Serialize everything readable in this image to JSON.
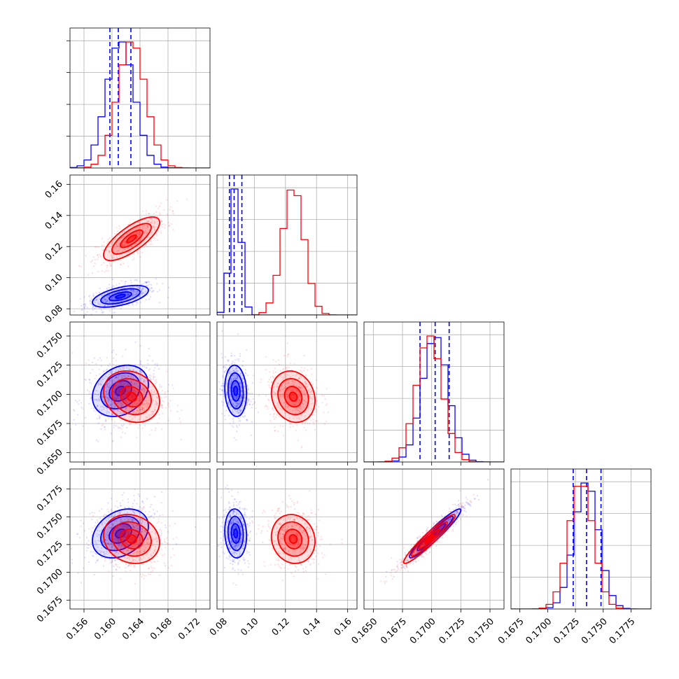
{
  "chart_data": {
    "type": "corner",
    "title": "",
    "grid": true,
    "parameters": [
      "",
      "",
      "",
      ""
    ],
    "ranges": [
      [
        0.154,
        0.174
      ],
      [
        0.076,
        0.166
      ],
      [
        0.1642,
        0.1762
      ],
      [
        0.1667,
        0.1793
      ]
    ],
    "x_ticks": [
      [
        "0.156",
        "0.160",
        "0.164",
        "0.168",
        "0.172"
      ],
      [
        "0.08",
        "0.10",
        "0.12",
        "0.14",
        "0.16"
      ],
      [
        "0.1650",
        "0.1675",
        "0.1700",
        "0.1725",
        "0.1750"
      ],
      [
        "0.1675",
        "0.1700",
        "0.1725",
        "0.1750",
        "0.1775"
      ]
    ],
    "y_ticks": [
      [],
      [
        "0.08",
        "0.10",
        "0.12",
        "0.14",
        "0.16"
      ],
      [
        "0.1650",
        "0.1675",
        "0.1700",
        "0.1725",
        "0.1750"
      ],
      [
        "0.1675",
        "0.1700",
        "0.1725",
        "0.1750",
        "0.1775"
      ]
    ],
    "series": [
      {
        "color": "#0000ff",
        "means": [
          0.1612,
          0.088,
          0.1703,
          0.1735
        ],
        "sigmas": [
          0.002,
          0.0035,
          0.0011,
          0.0011
        ],
        "correlations": [
          [
            0,
            1,
            0.55
          ],
          [
            0,
            2,
            0.25
          ],
          [
            0,
            3,
            0.3
          ],
          [
            1,
            2,
            -0.1
          ],
          [
            1,
            3,
            -0.1
          ],
          [
            2,
            3,
            0.95
          ]
        ],
        "quantiles": [
          [
            0.1597,
            0.1609,
            0.1627
          ],
          [
            0.084,
            0.087,
            0.092
          ],
          [
            0.169,
            0.1703,
            0.1715
          ],
          [
            0.1723,
            0.1735,
            0.1748
          ]
        ]
      },
      {
        "color": "#ff0000",
        "means": [
          0.1628,
          0.125,
          0.1698,
          0.173
        ],
        "sigmas": [
          0.002,
          0.007,
          0.0011,
          0.0011
        ],
        "correlations": [
          [
            0,
            1,
            0.75
          ],
          [
            0,
            2,
            -0.2
          ],
          [
            0,
            3,
            -0.15
          ],
          [
            1,
            2,
            -0.15
          ],
          [
            1,
            3,
            -0.1
          ],
          [
            2,
            3,
            0.95
          ]
        ],
        "quantiles": null
      }
    ]
  }
}
